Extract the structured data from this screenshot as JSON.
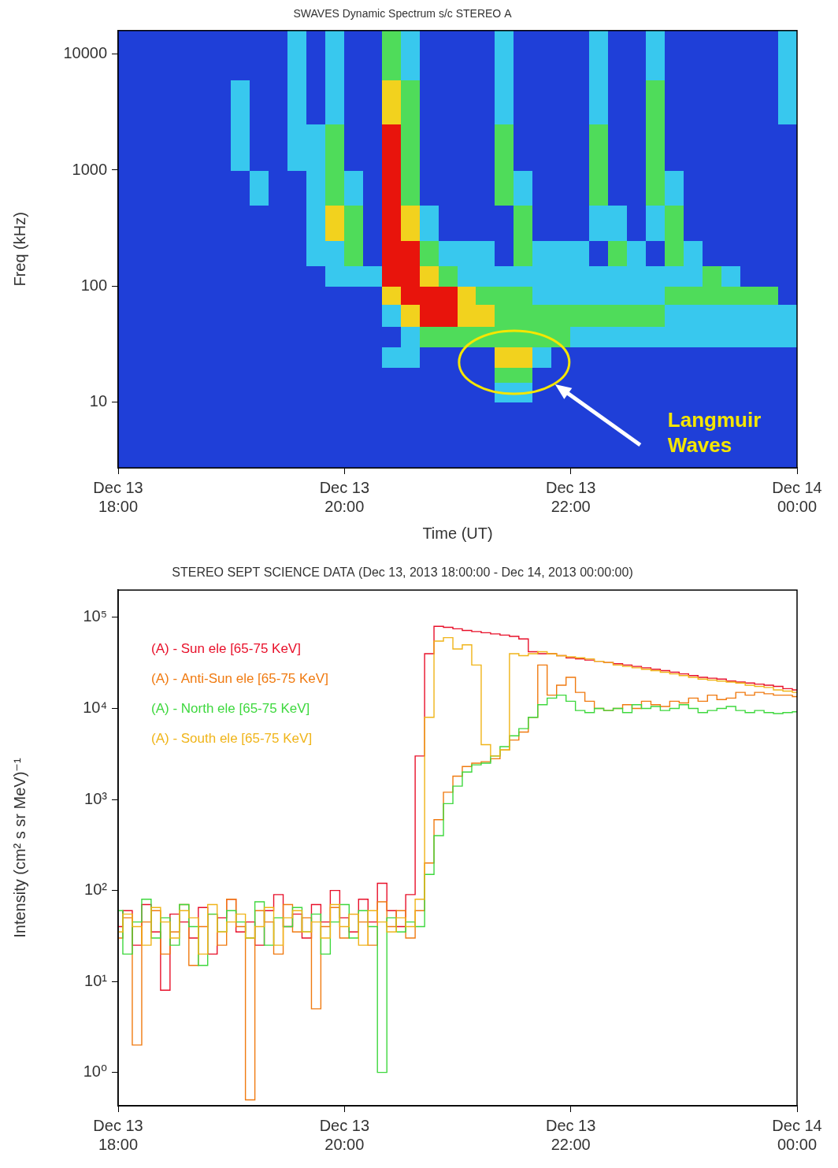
{
  "chart_data": [
    {
      "type": "heatmap",
      "title": "SWAVES Dynamic Spectrum s/c STEREO A",
      "x_label": "Time (UT)",
      "y_label": "Freq (kHz)",
      "log": "y",
      "grid": false,
      "xlim": [
        18,
        24
      ],
      "xticks": [
        {
          "value": 18,
          "label": "Dec 13\n18:00"
        },
        {
          "value": 20,
          "label": "Dec 13\n20:00"
        },
        {
          "value": 22,
          "label": "Dec 13\n22:00"
        },
        {
          "value": 24,
          "label": "Dec 14\n00:00"
        }
      ],
      "ylim": [
        2.7,
        16000
      ],
      "yticks": [
        10,
        100,
        1000,
        10000
      ],
      "x_edges": [
        18,
        18.167,
        18.333,
        18.5,
        18.667,
        18.833,
        19,
        19.167,
        19.333,
        19.5,
        19.667,
        19.833,
        20,
        20.167,
        20.333,
        20.5,
        20.667,
        20.833,
        21,
        21.167,
        21.333,
        21.5,
        21.667,
        21.833,
        22,
        22.167,
        22.333,
        22.5,
        22.667,
        22.833,
        23,
        23.167,
        23.333,
        23.5,
        23.667,
        23.833,
        24
      ],
      "y_edges": [
        2.7,
        5,
        10,
        15,
        20,
        30,
        45,
        70,
        100,
        150,
        250,
        500,
        1000,
        2500,
        6000,
        16000
      ],
      "cells": [
        [
          0,
          0,
          0,
          0,
          0,
          0,
          0,
          0,
          0,
          0,
          0,
          0,
          0,
          0,
          0,
          0,
          0,
          0,
          0,
          0,
          0,
          0,
          0,
          0,
          0,
          0,
          0,
          0,
          0,
          0,
          0,
          0,
          0,
          0,
          0,
          0
        ],
        [
          0,
          0,
          0,
          0,
          0,
          0,
          0,
          0,
          0,
          0,
          0,
          0,
          0,
          0,
          0,
          0,
          0,
          0,
          0,
          0,
          0,
          0,
          0,
          0,
          0,
          0,
          0,
          0,
          0,
          0,
          0,
          0,
          0,
          0,
          0,
          0
        ],
        [
          0,
          0,
          0,
          0,
          0,
          0,
          0,
          0,
          0,
          0,
          0,
          0,
          0,
          0,
          0,
          0,
          0,
          0,
          0,
          0,
          1,
          1,
          0,
          0,
          0,
          0,
          0,
          0,
          0,
          0,
          0,
          0,
          0,
          0,
          0,
          0
        ],
        [
          0,
          0,
          0,
          0,
          0,
          0,
          0,
          0,
          0,
          0,
          0,
          0,
          0,
          0,
          0,
          0,
          0,
          0,
          0,
          0,
          2,
          2,
          0,
          0,
          0,
          0,
          0,
          0,
          0,
          0,
          0,
          0,
          0,
          0,
          0,
          0
        ],
        [
          0,
          0,
          0,
          0,
          0,
          0,
          0,
          0,
          0,
          0,
          0,
          0,
          0,
          0,
          1,
          1,
          0,
          0,
          0,
          0,
          3,
          3,
          1,
          0,
          0,
          0,
          0,
          0,
          0,
          0,
          0,
          0,
          0,
          0,
          0,
          0
        ],
        [
          0,
          0,
          0,
          0,
          0,
          0,
          0,
          0,
          0,
          0,
          0,
          0,
          0,
          0,
          0,
          1,
          2,
          2,
          2,
          2,
          2,
          2,
          2,
          2,
          1,
          1,
          1,
          1,
          1,
          1,
          1,
          1,
          1,
          1,
          1,
          1
        ],
        [
          0,
          0,
          0,
          0,
          0,
          0,
          0,
          0,
          0,
          0,
          0,
          0,
          0,
          0,
          1,
          3,
          4,
          4,
          3,
          3,
          2,
          2,
          2,
          2,
          2,
          2,
          2,
          2,
          2,
          1,
          1,
          1,
          1,
          1,
          1,
          1
        ],
        [
          0,
          0,
          0,
          0,
          0,
          0,
          0,
          0,
          0,
          0,
          0,
          0,
          0,
          0,
          3,
          4,
          4,
          4,
          3,
          2,
          2,
          2,
          1,
          1,
          1,
          1,
          1,
          1,
          1,
          2,
          2,
          2,
          2,
          2,
          2,
          0
        ],
        [
          0,
          0,
          0,
          0,
          0,
          0,
          0,
          0,
          0,
          0,
          0,
          1,
          1,
          1,
          4,
          4,
          3,
          2,
          1,
          1,
          1,
          1,
          1,
          1,
          1,
          1,
          1,
          1,
          1,
          1,
          1,
          2,
          1,
          0,
          0,
          0
        ],
        [
          0,
          0,
          0,
          0,
          0,
          0,
          0,
          0,
          0,
          0,
          1,
          1,
          2,
          0,
          4,
          4,
          2,
          1,
          1,
          1,
          0,
          2,
          1,
          1,
          1,
          0,
          2,
          1,
          0,
          2,
          1,
          0,
          0,
          0,
          0,
          0
        ],
        [
          0,
          0,
          0,
          0,
          0,
          0,
          0,
          0,
          0,
          0,
          1,
          3,
          2,
          0,
          4,
          3,
          1,
          0,
          0,
          0,
          0,
          2,
          0,
          0,
          0,
          1,
          1,
          0,
          1,
          2,
          0,
          0,
          0,
          0,
          0,
          0
        ],
        [
          0,
          0,
          0,
          0,
          0,
          0,
          0,
          1,
          0,
          0,
          1,
          2,
          1,
          0,
          4,
          2,
          0,
          0,
          0,
          0,
          2,
          1,
          0,
          0,
          0,
          2,
          0,
          0,
          2,
          1,
          0,
          0,
          0,
          0,
          0,
          0
        ],
        [
          0,
          0,
          0,
          0,
          0,
          0,
          1,
          0,
          0,
          1,
          1,
          2,
          0,
          0,
          4,
          2,
          0,
          0,
          0,
          0,
          2,
          0,
          0,
          0,
          0,
          2,
          0,
          0,
          2,
          0,
          0,
          0,
          0,
          0,
          0,
          0
        ],
        [
          0,
          0,
          0,
          0,
          0,
          0,
          1,
          0,
          0,
          1,
          0,
          1,
          0,
          0,
          3,
          2,
          0,
          0,
          0,
          0,
          1,
          0,
          0,
          0,
          0,
          1,
          0,
          0,
          2,
          0,
          0,
          0,
          0,
          0,
          0,
          1
        ],
        [
          0,
          0,
          0,
          0,
          0,
          0,
          0,
          0,
          0,
          1,
          0,
          1,
          0,
          0,
          2,
          1,
          0,
          0,
          0,
          0,
          1,
          0,
          0,
          0,
          0,
          1,
          0,
          0,
          1,
          0,
          0,
          0,
          0,
          0,
          0,
          1
        ]
      ],
      "annotations": [
        {
          "text": "Langmuir Waves",
          "x": 21.5,
          "y": 22
        }
      ]
    },
    {
      "type": "line",
      "title": "STEREO SEPT SCIENCE DATA (Dec 13, 2013 18:00:00 - Dec 14, 2013 00:00:00)",
      "y_label": "Intensity (cm² s sr MeV)⁻¹",
      "log": "y",
      "grid": false,
      "legend": "upper left",
      "line_style": "steps",
      "xlim": [
        18,
        24
      ],
      "xticks": [
        {
          "value": 18,
          "label": "Dec 13\n18:00"
        },
        {
          "value": 20,
          "label": "Dec 13\n20:00"
        },
        {
          "value": 22,
          "label": "Dec 13\n22:00"
        },
        {
          "value": 24,
          "label": "Dec 14\n00:00"
        }
      ],
      "ylim": [
        0.43,
        200000
      ],
      "yticks": [
        {
          "value": 1,
          "label": "10⁰"
        },
        {
          "value": 10,
          "label": "10¹"
        },
        {
          "value": 100,
          "label": "10²"
        },
        {
          "value": 1000,
          "label": "10³"
        },
        {
          "value": 10000,
          "label": "10⁴"
        },
        {
          "value": 100000,
          "label": "10⁵"
        }
      ],
      "x": [
        18,
        18.083,
        18.167,
        18.25,
        18.333,
        18.417,
        18.5,
        18.583,
        18.667,
        18.75,
        18.833,
        18.917,
        19,
        19.083,
        19.167,
        19.25,
        19.333,
        19.417,
        19.5,
        19.583,
        19.667,
        19.75,
        19.833,
        19.917,
        20,
        20.083,
        20.167,
        20.25,
        20.333,
        20.417,
        20.5,
        20.583,
        20.667,
        20.75,
        20.833,
        20.917,
        21,
        21.083,
        21.167,
        21.25,
        21.333,
        21.417,
        21.5,
        21.583,
        21.667,
        21.75,
        21.833,
        21.917,
        22,
        22.083,
        22.167,
        22.25,
        22.333,
        22.417,
        22.5,
        22.583,
        22.667,
        22.75,
        22.833,
        22.917,
        23,
        23.083,
        23.167,
        23.25,
        23.333,
        23.417,
        23.5,
        23.583,
        23.667,
        23.75,
        23.833,
        23.917,
        24
      ],
      "series": [
        {
          "name": "(A) - Sun ele [65-75 KeV]",
          "color": "#e8102a",
          "values": [
            40,
            60,
            25,
            70,
            35,
            8,
            55,
            45,
            30,
            65,
            20,
            50,
            80,
            35,
            45,
            25,
            60,
            90,
            40,
            55,
            30,
            70,
            45,
            100,
            50,
            35,
            80,
            45,
            120,
            60,
            40,
            90,
            3000,
            40000,
            80000,
            78000,
            75000,
            72000,
            70000,
            68000,
            66000,
            64000,
            62000,
            58000,
            42000,
            40000,
            40000,
            38000,
            36000,
            35000,
            34000,
            33000,
            32000,
            31000,
            30000,
            29000,
            28000,
            27000,
            26000,
            25000,
            24000,
            23000,
            22000,
            21500,
            21000,
            20000,
            19500,
            19000,
            18500,
            18000,
            17500,
            16500,
            16000
          ]
        },
        {
          "name": "(A) - Anti-Sun ele [65-75 KeV]",
          "color": "#f07a10",
          "values": [
            30,
            50,
            2,
            45,
            60,
            20,
            35,
            70,
            15,
            40,
            55,
            25,
            80,
            40,
            0.5,
            60,
            45,
            20,
            70,
            35,
            50,
            5,
            40,
            65,
            30,
            55,
            45,
            25,
            75,
            40,
            60,
            30,
            60,
            200,
            600,
            1200,
            1800,
            2300,
            2500,
            2600,
            2800,
            3500,
            4500,
            5500,
            8000,
            30000,
            14000,
            18000,
            22000,
            15000,
            12000,
            10000,
            9500,
            10000,
            11000,
            10000,
            12000,
            11000,
            10500,
            12000,
            11500,
            13000,
            12000,
            14000,
            12500,
            13000,
            15000,
            14000,
            15000,
            14500,
            14000,
            14000,
            13500
          ]
        },
        {
          "name": "(A) - North ele [65-75 KeV]",
          "color": "#3ed83e",
          "values": [
            60,
            20,
            45,
            80,
            30,
            50,
            25,
            70,
            40,
            15,
            55,
            35,
            60,
            45,
            30,
            75,
            25,
            50,
            40,
            65,
            35,
            55,
            20,
            45,
            70,
            30,
            60,
            40,
            1,
            50,
            35,
            45,
            40,
            150,
            400,
            900,
            1400,
            2000,
            2400,
            2500,
            3000,
            3800,
            5000,
            6000,
            8000,
            11000,
            13000,
            14000,
            12000,
            9500,
            9000,
            10000,
            9500,
            10000,
            9000,
            11000,
            10000,
            10500,
            9500,
            10000,
            11000,
            10000,
            9000,
            9500,
            10000,
            10500,
            9500,
            9000,
            9500,
            9000,
            8800,
            9000,
            9200
          ]
        },
        {
          "name": "(A) - South ele [65-75 KeV]",
          "color": "#f0b418",
          "values": [
            35,
            55,
            40,
            25,
            65,
            45,
            30,
            60,
            50,
            20,
            70,
            35,
            45,
            55,
            30,
            40,
            65,
            25,
            50,
            60,
            35,
            45,
            30,
            70,
            40,
            55,
            25,
            60,
            45,
            35,
            50,
            40,
            80,
            8000,
            55000,
            60000,
            45000,
            50000,
            30000,
            4000,
            3000,
            3500,
            40000,
            38000,
            40000,
            42000,
            40000,
            38000,
            37000,
            36000,
            35000,
            33000,
            32000,
            30000,
            29000,
            28000,
            27000,
            26000,
            25000,
            24000,
            23000,
            22000,
            21000,
            20500,
            20000,
            19500,
            19000,
            18000,
            17500,
            17000,
            16000,
            15500,
            15000
          ]
        }
      ]
    }
  ]
}
